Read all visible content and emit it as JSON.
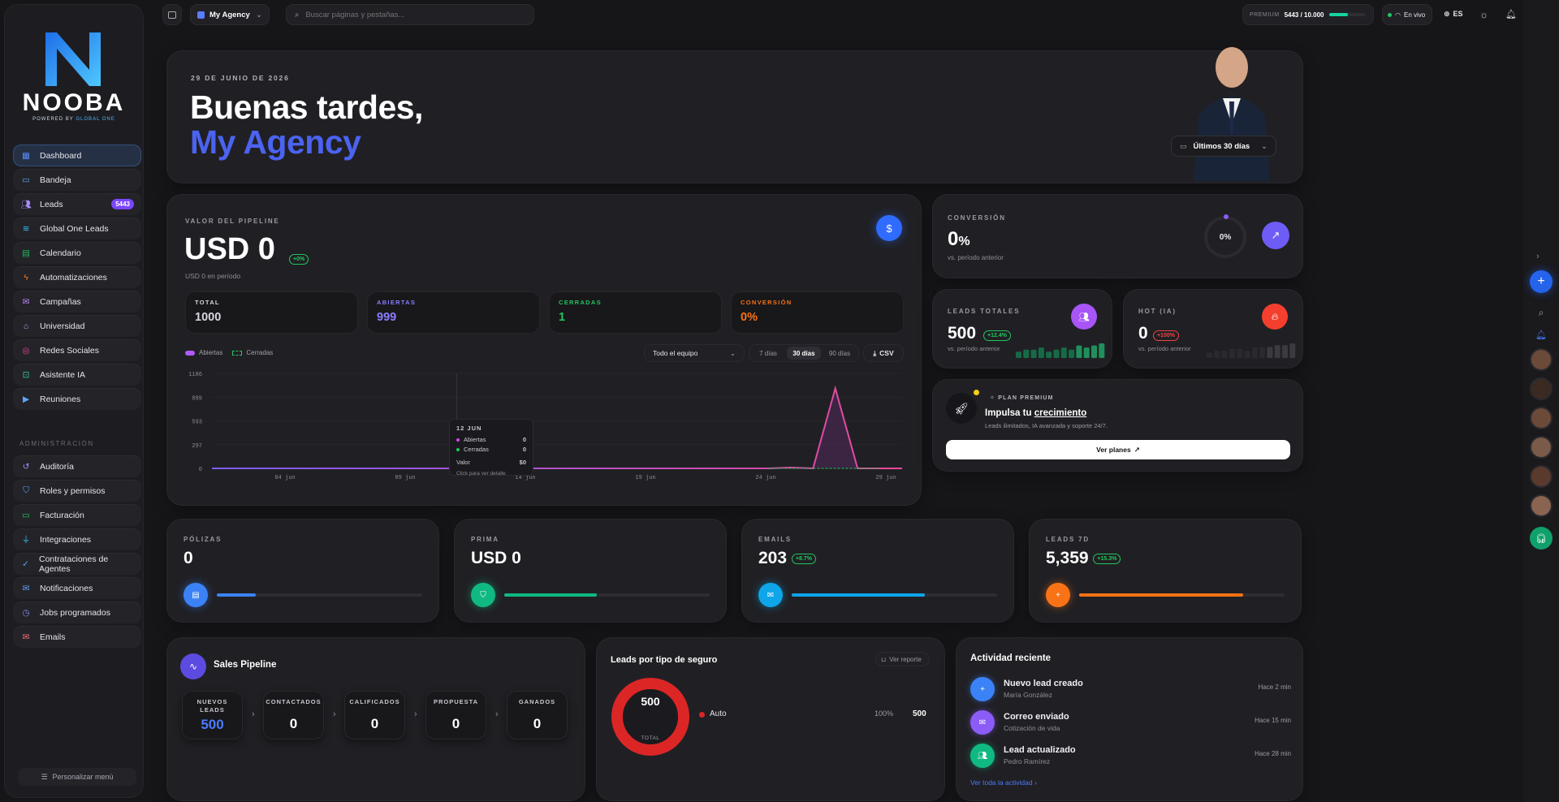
{
  "brand": {
    "name": "NOOBA",
    "tagline_a": "POWERED BY",
    "tagline_b": "GLOBAL ONE"
  },
  "sidebar": {
    "items": [
      {
        "label": "Dashboard",
        "icon": "grid-icon"
      },
      {
        "label": "Bandeja",
        "icon": "inbox-icon"
      },
      {
        "label": "Leads",
        "icon": "users-icon",
        "badge": "5443"
      },
      {
        "label": "Global One Leads",
        "icon": "database-icon"
      },
      {
        "label": "Calendario",
        "icon": "calendar-icon"
      },
      {
        "label": "Automatizaciones",
        "icon": "bolt-icon"
      },
      {
        "label": "Campañas",
        "icon": "mail-icon"
      },
      {
        "label": "Universidad",
        "icon": "school-icon"
      },
      {
        "label": "Redes Sociales",
        "icon": "instagram-icon"
      },
      {
        "label": "Asistente IA",
        "icon": "bot-icon"
      },
      {
        "label": "Reuniones",
        "icon": "video-icon"
      }
    ],
    "admin_title": "ADMINISTRACIÓN",
    "admin_items": [
      {
        "label": "Auditoría",
        "icon": "history-icon"
      },
      {
        "label": "Roles y permisos",
        "icon": "shield-icon"
      },
      {
        "label": "Facturación",
        "icon": "card-icon"
      },
      {
        "label": "Integraciones",
        "icon": "plug-icon"
      },
      {
        "label": "Contrataciones de Agentes",
        "icon": "shield-check-icon"
      },
      {
        "label": "Notificaciones",
        "icon": "mail-icon"
      },
      {
        "label": "Jobs programados",
        "icon": "clock-icon"
      },
      {
        "label": "Emails",
        "icon": "mail-icon"
      }
    ],
    "customize": "Personalizar menú"
  },
  "topbar": {
    "agency": "My Agency",
    "search_placeholder": "Buscar páginas y pestañas...",
    "plan": "PREMIUM",
    "usage": "5443 / 10.000",
    "usage_fraction": 0.5443,
    "live": "En vivo",
    "lang": "ES"
  },
  "hero": {
    "date": "29 DE JUNIO DE 2026",
    "greeting": "Buenas tardes,",
    "name": "My Agency",
    "period": "Últimos 30 días"
  },
  "pipeline": {
    "title": "VALOR DEL PIPELINE",
    "value": "USD 0",
    "delta": "+0%",
    "sub": "USD 0 en período",
    "stats": [
      {
        "label": "TOTAL",
        "value": "1000",
        "color": "#d8d8de"
      },
      {
        "label": "ABIERTAS",
        "value": "999",
        "color": "#8a7cff"
      },
      {
        "label": "CERRADAS",
        "value": "1",
        "color": "#22c55e"
      },
      {
        "label": "CONVERSIÓN",
        "value": "0%",
        "color": "#f97316"
      }
    ],
    "legend_open": "Abiertas",
    "legend_closed": "Cerradas",
    "team": "Todo el equipo",
    "ranges": [
      "7 días",
      "30 días",
      "90 días"
    ],
    "csv": "CSV",
    "tooltip": {
      "date": "12 JUN",
      "open_label": "Abiertas",
      "open_val": "0",
      "closed_label": "Cerradas",
      "closed_val": "0",
      "value_label": "Valor",
      "value_val": "$0",
      "hint": "Click para ver detalle"
    }
  },
  "chart_data": {
    "type": "line",
    "x_ticks": [
      "04 jun",
      "09 jun",
      "14 jun",
      "19 jun",
      "24 jun",
      "29 jun"
    ],
    "y_ticks": [
      "1186",
      "889",
      "593",
      "297",
      "0"
    ],
    "ylim": [
      0,
      1186
    ],
    "series": [
      {
        "name": "Abiertas",
        "color": "#d946ef",
        "values": [
          0,
          0,
          0,
          0,
          0,
          0,
          0,
          0,
          0,
          0,
          0,
          0,
          0,
          0,
          0,
          0,
          0,
          0,
          0,
          0,
          0,
          0,
          0,
          0,
          0,
          0,
          10,
          0,
          999,
          0,
          0,
          0
        ]
      },
      {
        "name": "Cerradas",
        "color": "#22c55e",
        "values": [
          0,
          0,
          0,
          0,
          0,
          0,
          0,
          0,
          0,
          0,
          0,
          0,
          0,
          0,
          0,
          0,
          0,
          0,
          0,
          0,
          0,
          0,
          0,
          0,
          0,
          0,
          0,
          0,
          1,
          0,
          0,
          0
        ]
      }
    ]
  },
  "conversion": {
    "title": "CONVERSIÓN",
    "value": "0",
    "unit": "%",
    "sub": "vs. período anterior",
    "ring": "0%"
  },
  "leads_total": {
    "title": "LEADS TOTALES",
    "value": "500",
    "delta": "+12.4%",
    "sub": "vs. período anterior",
    "bars": [
      3,
      4,
      4,
      5,
      3,
      4,
      5,
      4,
      6,
      5,
      6,
      7
    ]
  },
  "hot": {
    "title": "HOT (IA)",
    "value": "0",
    "delta": "+100%",
    "sub": "vs. período anterior",
    "bars": [
      3,
      4,
      4,
      5,
      5,
      4,
      6,
      6,
      6,
      7,
      7,
      8
    ]
  },
  "premium": {
    "tag": "PLAN PREMIUM",
    "title_a": "Impulsa tu ",
    "title_b": "crecimiento",
    "desc": "Leads ilimitados, IA avanzada y soporte 24/7.",
    "cta": "Ver planes"
  },
  "kpis": [
    {
      "label": "PÓLIZAS",
      "value": "0",
      "color": "#3b82f6",
      "progress": 0.19,
      "icon": "file-icon"
    },
    {
      "label": "PRIMA",
      "value": "USD 0",
      "color": "#10b981",
      "progress": 0.45,
      "icon": "shield-icon"
    },
    {
      "label": "EMAILS",
      "value": "203",
      "delta": "+8.7%",
      "color": "#0ea5e9",
      "progress": 0.65,
      "icon": "mail-icon"
    },
    {
      "label": "LEADS 7D",
      "value": "5,359",
      "delta": "+15.3%",
      "color": "#f97316",
      "progress": 0.8,
      "icon": "user-plus-icon"
    }
  ],
  "sales": {
    "title": "Sales Pipeline",
    "stages": [
      {
        "name_a": "NUEVOS",
        "name_b": "LEADS",
        "value": "500"
      },
      {
        "name_a": "CONTACTADOS",
        "name_b": "",
        "value": "0"
      },
      {
        "name_a": "CALIFICADOS",
        "name_b": "",
        "value": "0"
      },
      {
        "name_a": "PROPUESTA",
        "name_b": "",
        "value": "0"
      },
      {
        "name_a": "GANADOS",
        "name_b": "",
        "value": "0"
      }
    ]
  },
  "insurance": {
    "title": "Leads por tipo de seguro",
    "report": "Ver reporte",
    "total": "500",
    "total_label": "TOTAL",
    "row_label": "Auto",
    "row_pct": "100%",
    "row_val": "500"
  },
  "activity": {
    "title": "Actividad reciente",
    "items": [
      {
        "title": "Nuevo lead creado",
        "sub": "María González",
        "time": "Hace 2 min",
        "color": "#3b82f6"
      },
      {
        "title": "Correo enviado",
        "sub": "Cotización de vida",
        "time": "Hace 15 min",
        "color": "#8b5cf6"
      },
      {
        "title": "Lead actualizado",
        "sub": "Pedro Ramírez",
        "time": "Hace 28 min",
        "color": "#10b981"
      }
    ],
    "see_all": "Ver toda la actividad"
  }
}
